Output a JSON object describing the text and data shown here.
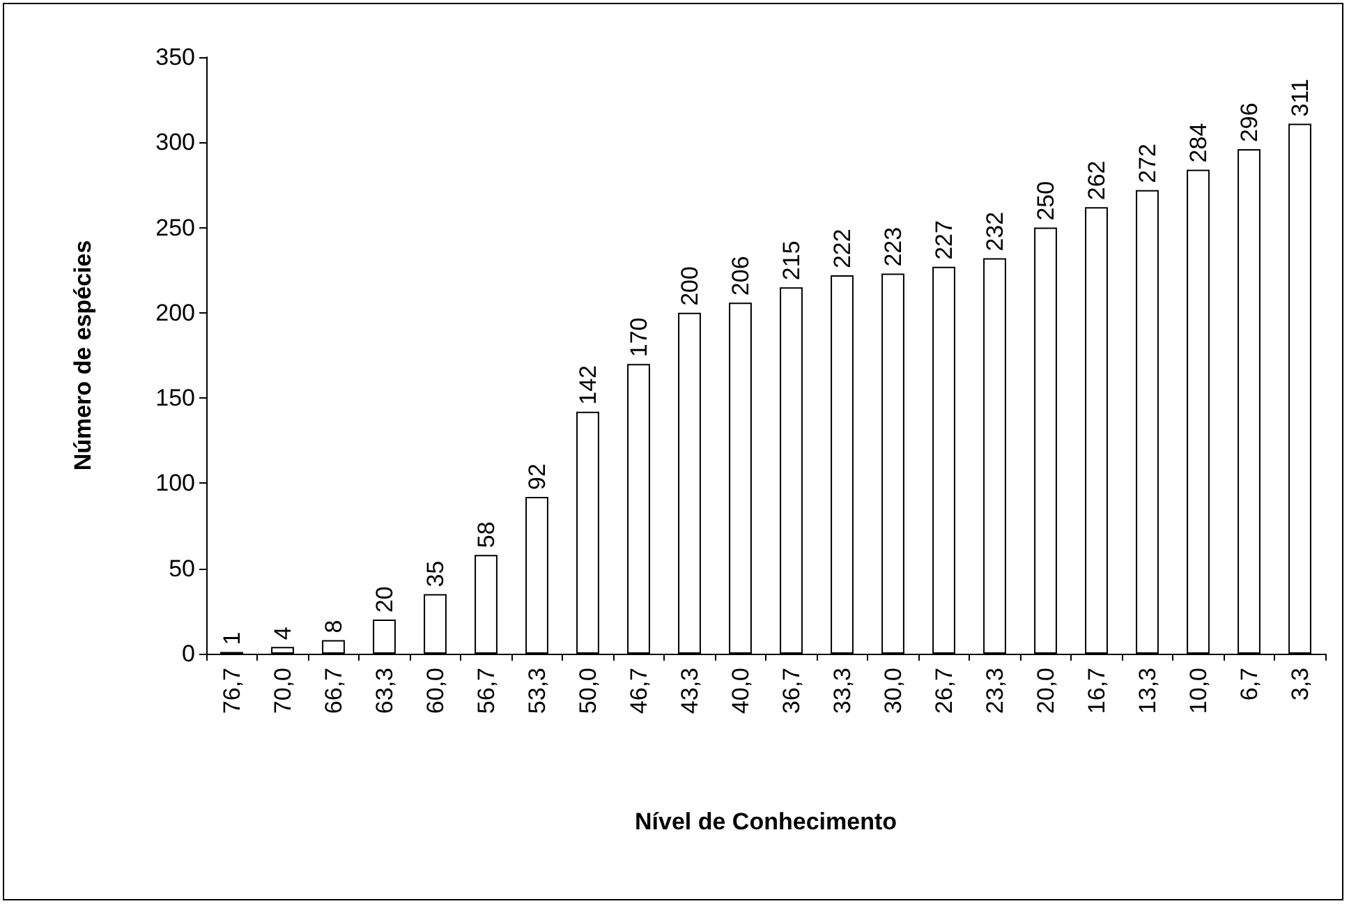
{
  "chart_data": {
    "type": "bar",
    "xlabel": "Nível de Conhecimento",
    "ylabel": "Número de espécies",
    "categories": [
      "76,7",
      "70,0",
      "66,7",
      "63,3",
      "60,0",
      "56,7",
      "53,3",
      "50,0",
      "46,7",
      "43,3",
      "40,0",
      "36,7",
      "33,3",
      "30,0",
      "26,7",
      "23,3",
      "20,0",
      "16,7",
      "13,3",
      "10,0",
      "6,7",
      "3,3"
    ],
    "values": [
      1,
      4,
      8,
      20,
      35,
      58,
      92,
      142,
      170,
      200,
      206,
      215,
      222,
      223,
      227,
      232,
      250,
      262,
      272,
      284,
      296,
      311
    ],
    "color": "#ffffff",
    "ylim": [
      0,
      350
    ],
    "yticks": [
      0,
      50,
      100,
      150,
      200,
      250,
      300,
      350
    ],
    "grid": false,
    "data_labels": true
  }
}
